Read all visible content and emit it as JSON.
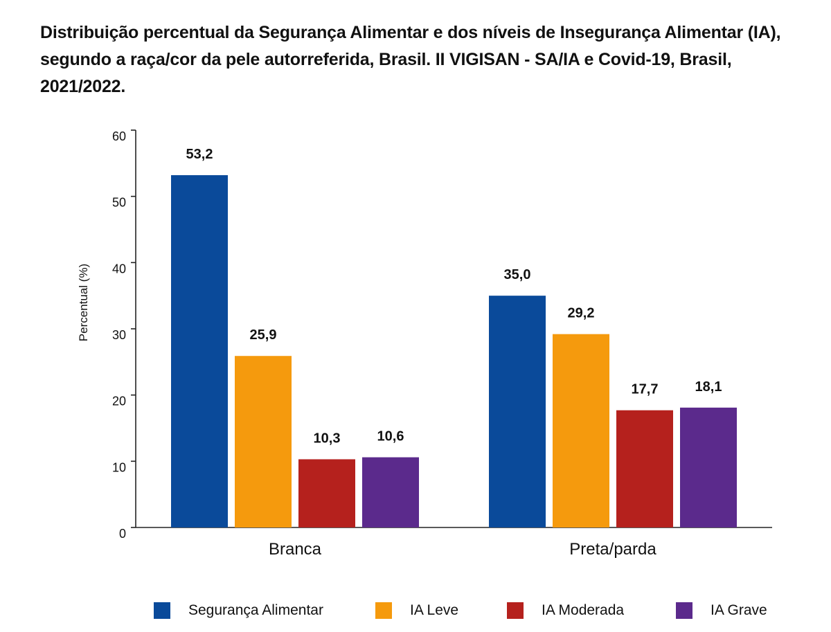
{
  "chart_data": {
    "type": "bar",
    "title": "Distribuição percentual da Segurança Alimentar e dos níveis de Insegurança Alimentar (IA), segundo a raça/cor da pele autorreferida, Brasil. II VIGISAN - SA/IA e Covid-19, Brasil, 2021/2022.",
    "xlabel": "",
    "ylabel": "Percentual (%)",
    "ylim": [
      0,
      60
    ],
    "yticks": [
      0,
      10,
      20,
      30,
      40,
      50,
      60
    ],
    "categories": [
      "Branca",
      "Preta/parda"
    ],
    "series": [
      {
        "name": "Segurança Alimentar",
        "color": "#0a4a9a",
        "values": [
          53.2,
          35.0
        ],
        "labels": [
          "53,2",
          "35,0"
        ]
      },
      {
        "name": "IA Leve",
        "color": "#f59a0d",
        "values": [
          25.9,
          29.2
        ],
        "labels": [
          "25,9",
          "29,2"
        ]
      },
      {
        "name": "IA Moderada",
        "color": "#b5211d",
        "values": [
          10.3,
          17.7
        ],
        "labels": [
          "10,3",
          "17,7"
        ]
      },
      {
        "name": "IA Grave",
        "color": "#5b2a8c",
        "values": [
          10.6,
          18.1
        ],
        "labels": [
          "10,6",
          "18,1"
        ]
      }
    ],
    "grid": false,
    "legend": "bottom"
  }
}
